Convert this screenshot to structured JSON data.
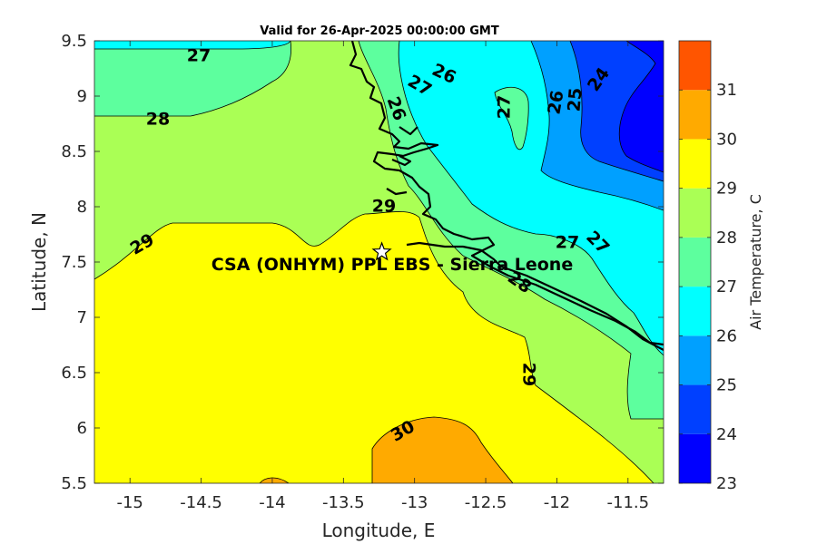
{
  "title": "Valid for 26-Apr-2025 00:00:00 GMT",
  "x_axis": {
    "label": "Longitude, E",
    "ticks": [
      "-15",
      "-14.5",
      "-14",
      "-13.5",
      "-13",
      "-12.5",
      "-12",
      "-11.5"
    ]
  },
  "y_axis": {
    "label": "Latitude, N",
    "ticks": [
      "5.5",
      "6",
      "6.5",
      "7",
      "7.5",
      "8",
      "8.5",
      "9",
      "9.5"
    ]
  },
  "colorbar": {
    "label": "Air Temperature, C",
    "ticks": [
      "23",
      "24",
      "25",
      "26",
      "27",
      "28",
      "29",
      "30",
      "31"
    ],
    "colors": [
      "#0000ff",
      "#0040ff",
      "#00a0ff",
      "#00ffff",
      "#5dff9e",
      "#aaff55",
      "#ffff00",
      "#ffaa00",
      "#ff5500"
    ]
  },
  "site": {
    "label": "CSA (ONHYM) PPL EBS  - Sierra Leone",
    "lon": -13.23,
    "lat": 7.59
  },
  "contour_labels": [
    {
      "text": "27"
    },
    {
      "text": "28"
    },
    {
      "text": "29"
    },
    {
      "text": "29"
    },
    {
      "text": "27"
    },
    {
      "text": "26"
    },
    {
      "text": "26"
    },
    {
      "text": "27"
    },
    {
      "text": "26"
    },
    {
      "text": "25"
    },
    {
      "text": "24"
    },
    {
      "text": "27"
    },
    {
      "text": "27"
    },
    {
      "text": "28"
    },
    {
      "text": "29"
    },
    {
      "text": "30"
    }
  ]
}
